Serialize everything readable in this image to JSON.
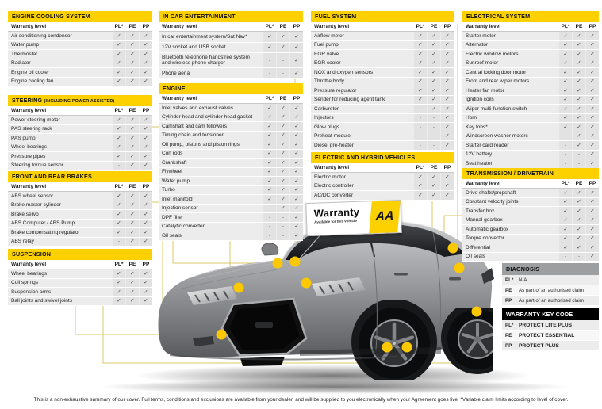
{
  "shared": {
    "row_header": "Warranty level",
    "columns": [
      "PL*",
      "PE",
      "PP"
    ],
    "check": "✓",
    "none": "-"
  },
  "colors": {
    "accent_yellow": "#fdd000",
    "connector_line": "#dcc765",
    "callout_dot": "#fcc900",
    "diagnosis_header": "#9c9ea0",
    "keycode_header": "#000000",
    "row_gray": "#ececec"
  },
  "tables": [
    {
      "id": "engine-cooling-system",
      "title": "ENGINE COOLING SYSTEM",
      "suffix": "",
      "rows": [
        [
          "Air conditioning condensor",
          "✓",
          "✓",
          "✓"
        ],
        [
          "Water pump",
          "✓",
          "✓",
          "✓"
        ],
        [
          "Thermostat",
          "✓",
          "✓",
          "✓"
        ],
        [
          "Radiator",
          "✓",
          "✓",
          "✓"
        ],
        [
          "Engine oil cooler",
          "✓",
          "✓",
          "✓"
        ],
        [
          "Engine cooling fan",
          "✓",
          "✓",
          "✓"
        ]
      ]
    },
    {
      "id": "steering",
      "title": "STEERING",
      "suffix": "(INCLUDING POWER ASSISTED)",
      "rows": [
        [
          "Power steering motor",
          "✓",
          "✓",
          "✓"
        ],
        [
          "PAS steering rack",
          "✓",
          "✓",
          "✓"
        ],
        [
          "PAS pump",
          "✓",
          "✓",
          "✓"
        ],
        [
          "Wheel bearings",
          "✓",
          "✓",
          "✓"
        ],
        [
          "Pressure pipes",
          "✓",
          "✓",
          "✓"
        ],
        [
          "Steering torque sensor",
          "-",
          "✓",
          "✓"
        ]
      ]
    },
    {
      "id": "front-and-rear-brakes",
      "title": "FRONT AND REAR BRAKES",
      "suffix": "",
      "rows": [
        [
          "ABS wheel sensor",
          "✓",
          "✓",
          "✓"
        ],
        [
          "Brake master cylinder",
          "✓",
          "✓",
          "✓"
        ],
        [
          "Brake servo",
          "✓",
          "✓",
          "✓"
        ],
        [
          "ABS Computer / ABS Pump",
          "✓",
          "✓",
          "✓"
        ],
        [
          "Brake compensating regulator",
          "✓",
          "✓",
          "✓"
        ],
        [
          "ABS relay",
          "-",
          "✓",
          "✓"
        ]
      ]
    },
    {
      "id": "suspension",
      "title": "SUSPENSION",
      "suffix": "",
      "rows": [
        [
          "Wheel bearings",
          "✓",
          "✓",
          "✓"
        ],
        [
          "Coil springs",
          "✓",
          "✓",
          "✓"
        ],
        [
          "Suspension arms",
          "✓",
          "✓",
          "✓"
        ],
        [
          "Ball joints and swivel joints",
          "✓",
          "✓",
          "✓"
        ]
      ]
    },
    {
      "id": "in-car-entertainment",
      "title": "IN CAR ENTERTAINMENT",
      "suffix": "",
      "rows": [
        [
          "In car entertainment system/Sat Nav*",
          "✓",
          "✓",
          "✓"
        ],
        [
          "12V socket and USB socket",
          "✓",
          "✓",
          "✓"
        ],
        [
          "Bluetooth telephone handsfree system and wireless phone charger",
          "-",
          "-",
          "✓"
        ],
        [
          "Phone aerial",
          "-",
          "-",
          "✓"
        ]
      ]
    },
    {
      "id": "engine",
      "title": "ENGINE",
      "suffix": "",
      "rows": [
        [
          "Inlet valves and exhaust valves",
          "✓",
          "✓",
          "✓"
        ],
        [
          "Cylinder head and cylinder head gasket",
          "✓",
          "✓",
          "✓"
        ],
        [
          "Camshaft and cam followers",
          "✓",
          "✓",
          "✓"
        ],
        [
          "Timing chain and tensioner",
          "✓",
          "✓",
          "✓"
        ],
        [
          "Oil pump, pistons and piston rings",
          "✓",
          "✓",
          "✓"
        ],
        [
          "Con rods",
          "✓",
          "✓",
          "✓"
        ],
        [
          "Crankshaft",
          "✓",
          "✓",
          "✓"
        ],
        [
          "Flywheel",
          "✓",
          "✓",
          "✓"
        ],
        [
          "Water pump",
          "✓",
          "✓",
          "✓"
        ],
        [
          "Turbo",
          "✓",
          "✓",
          "✓"
        ],
        [
          "Inlet manifold",
          "✓",
          "✓",
          "✓"
        ],
        [
          "Injection sensor",
          "-",
          "✓",
          "✓"
        ],
        [
          "DPF filter",
          "-",
          "-",
          "✓"
        ],
        [
          "Catalytic converter",
          "-",
          "-",
          "✓"
        ],
        [
          "Oil seals",
          "-",
          "-",
          "✓"
        ]
      ]
    },
    {
      "id": "fuel-system",
      "title": "FUEL SYSTEM",
      "suffix": "",
      "rows": [
        [
          "Airflow meter",
          "✓",
          "✓",
          "✓"
        ],
        [
          "Fuel pump",
          "✓",
          "✓",
          "✓"
        ],
        [
          "EGR valve",
          "✓",
          "✓",
          "✓"
        ],
        [
          "EGR cooler",
          "✓",
          "✓",
          "✓"
        ],
        [
          "NOX and oxygen sensors",
          "✓",
          "✓",
          "✓"
        ],
        [
          "Throttle body",
          "✓",
          "✓",
          "✓"
        ],
        [
          "Pressure regulator",
          "✓",
          "✓",
          "✓"
        ],
        [
          "Sender for reducing agent tank",
          "✓",
          "✓",
          "✓"
        ],
        [
          "Carburetor",
          "-",
          "✓",
          "✓"
        ],
        [
          "Injectors",
          "-",
          "-",
          "✓"
        ],
        [
          "Glow plugs",
          "-",
          "-",
          "✓"
        ],
        [
          "Preheat module",
          "-",
          "-",
          "✓"
        ],
        [
          "Diesel pre-heater",
          "-",
          "-",
          "✓"
        ]
      ]
    },
    {
      "id": "electric-and-hybrid-vehicles",
      "title": "ELECTRIC AND HYBRID VEHICLES",
      "suffix": "",
      "rows": [
        [
          "Electric motor",
          "✓",
          "✓",
          "✓"
        ],
        [
          "Electric controller",
          "✓",
          "✓",
          "✓"
        ],
        [
          "AC/DC converter",
          "✓",
          "✓",
          "✓"
        ]
      ]
    },
    {
      "id": "electrical-system",
      "title": "ELECTRICAL SYSTEM",
      "suffix": "",
      "rows": [
        [
          "Starter motor",
          "✓",
          "✓",
          "✓"
        ],
        [
          "Alternator",
          "✓",
          "✓",
          "✓"
        ],
        [
          "Electric window motors",
          "✓",
          "✓",
          "✓"
        ],
        [
          "Sunroof motor",
          "✓",
          "✓",
          "✓"
        ],
        [
          "Central locking door motor",
          "✓",
          "✓",
          "✓"
        ],
        [
          "Front and rear wiper motors",
          "✓",
          "✓",
          "✓"
        ],
        [
          "Heater fan motor",
          "✓",
          "✓",
          "✓"
        ],
        [
          "Ignition coils",
          "✓",
          "✓",
          "✓"
        ],
        [
          "Wiper multi-function switch",
          "✓",
          "✓",
          "✓"
        ],
        [
          "Horn",
          "✓",
          "✓",
          "✓"
        ],
        [
          "Key fobs*",
          "✓",
          "✓",
          "✓"
        ],
        [
          "Windscreen washer motors",
          "-",
          "✓",
          "✓"
        ],
        [
          "Starter card reader",
          "-",
          "✓",
          "✓"
        ],
        [
          "12V battery",
          "-",
          "-",
          "✓"
        ],
        [
          "Seat heater",
          "-",
          "-",
          "✓"
        ]
      ]
    },
    {
      "id": "transmission-drivetrain",
      "title": "TRANSMISSION / DRIVETRAIN",
      "suffix": "",
      "rows": [
        [
          "Drive shafts/propshaft",
          "✓",
          "✓",
          "✓"
        ],
        [
          "Constant velocity joints",
          "✓",
          "✓",
          "✓"
        ],
        [
          "Transfer box",
          "✓",
          "✓",
          "✓"
        ],
        [
          "Manual gearbox",
          "✓",
          "✓",
          "✓"
        ],
        [
          "Automatic gearbox",
          "✓",
          "✓",
          "✓"
        ],
        [
          "Torque convertor",
          "✓",
          "✓",
          "✓"
        ],
        [
          "Differential",
          "✓",
          "✓",
          "✓"
        ],
        [
          "Oil seals",
          "-",
          "-",
          "✓"
        ]
      ]
    }
  ],
  "diagnosis": {
    "title": "DIAGNOSIS",
    "rows": [
      [
        "PL*",
        "N/A"
      ],
      [
        "PE",
        "As part of an authorised claim"
      ],
      [
        "PP",
        "As part of an authorised claim"
      ]
    ]
  },
  "key_code": {
    "title": "WARRANTY KEY CODE",
    "rows": [
      [
        "PL*",
        "PROTECT LITE PLUS"
      ],
      [
        "PE",
        "PROTECT ESSENTIAL"
      ],
      [
        "PP",
        "PROTECT PLUS"
      ]
    ]
  },
  "badge": {
    "title": "Warranty",
    "subtitle": "Available for this vehicle",
    "logo": "AA"
  },
  "footer": {
    "disclaimer": "This is a non-exhaustive summary of our cover. Full terms, conditions and exclusions are available from your dealer, and will be supplied to you electronically when your Agreement goes live. *Variable claim limits according to level of cover."
  }
}
